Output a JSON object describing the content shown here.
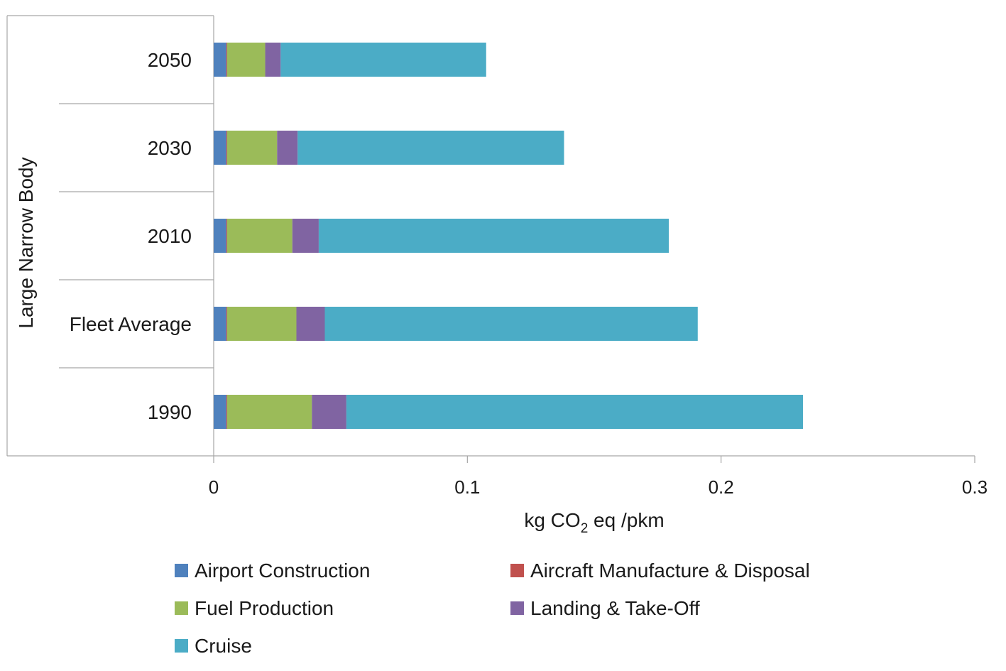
{
  "chart_data": {
    "type": "bar",
    "orientation": "horizontal",
    "stacked": true,
    "group_label": "Large Narrow Body",
    "categories": [
      "1990",
      "Fleet Average",
      "2010",
      "2030",
      "2050"
    ],
    "series": [
      {
        "name": "Airport Construction",
        "color": "#4f81bd",
        "values": [
          0.005,
          0.005,
          0.005,
          0.005,
          0.005
        ]
      },
      {
        "name": "Aircraft Manufacture & Disposal",
        "color": "#c0504d",
        "values": [
          0.0003,
          0.0003,
          0.0003,
          0.0003,
          0.0003
        ]
      },
      {
        "name": "Fuel Production",
        "color": "#9bbb59",
        "values": [
          0.0334,
          0.0273,
          0.0257,
          0.0197,
          0.015
        ]
      },
      {
        "name": "Landing & Take-Off",
        "color": "#8064a2",
        "values": [
          0.0136,
          0.0112,
          0.0104,
          0.0081,
          0.0061
        ]
      },
      {
        "name": "Cruise",
        "color": "#4bacc6",
        "values": [
          0.18,
          0.147,
          0.138,
          0.105,
          0.081
        ]
      }
    ],
    "xlim": [
      0,
      0.3
    ],
    "xticks": [
      "0",
      "0.1",
      "0.2",
      "0.3"
    ],
    "xlabel_prefix": "kg CO",
    "xlabel_subscript": "2",
    "xlabel_suffix": " eq /pkm",
    "grid": false,
    "legend_position": "bottom"
  }
}
